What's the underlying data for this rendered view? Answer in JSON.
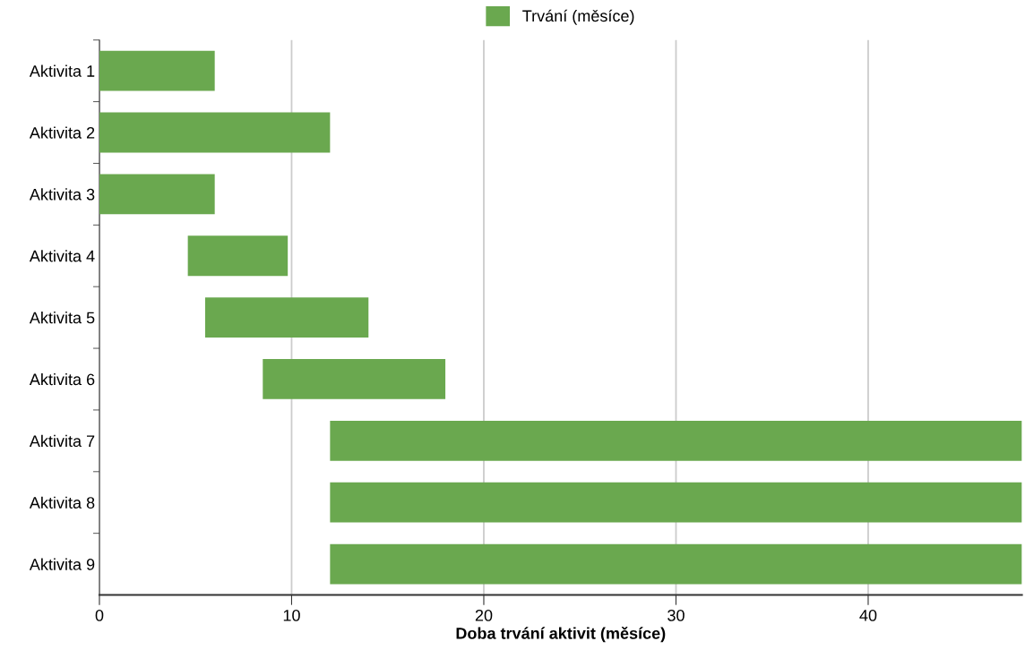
{
  "chart_data": {
    "type": "bar",
    "orientation": "horizontal",
    "categories": [
      "Aktivita 1",
      "Aktivita 2",
      "Aktivita 3",
      "Aktivita 4",
      "Aktivita 5",
      "Aktivita 6",
      "Aktivita 7",
      "Aktivita 8",
      "Aktivita 9"
    ],
    "series": [
      {
        "name": "Trvání (měsíce)",
        "color": "#6aa84f",
        "values": [
          6,
          12,
          6,
          5.2,
          8.5,
          9.5,
          36,
          36,
          36
        ],
        "base": [
          0,
          0,
          0,
          4.6,
          5.5,
          8.5,
          12,
          12,
          12
        ]
      }
    ],
    "xlabel": "Doba trvání aktivit (měsíce)",
    "xlim": [
      0,
      48
    ],
    "xticks": [
      0,
      10,
      20,
      30,
      40
    ],
    "grid": "x",
    "legend": "top"
  }
}
